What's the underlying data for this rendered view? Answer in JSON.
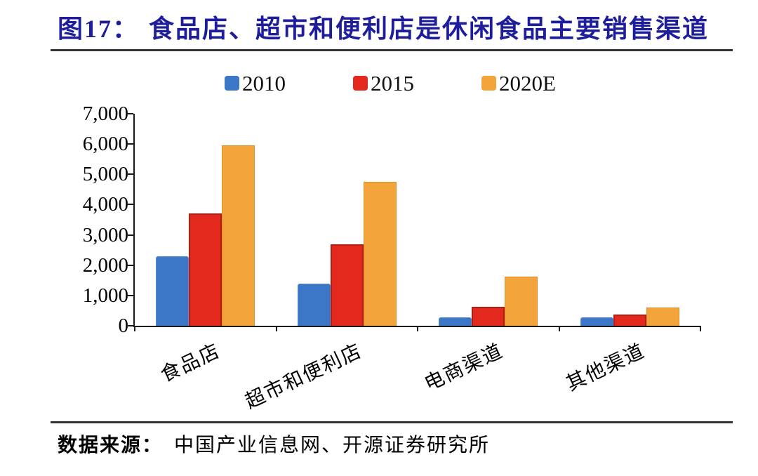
{
  "figure": {
    "title_prefix": "图17：",
    "title_text": "食品店、超市和便利店是休闲食品主要销售渠道"
  },
  "source": {
    "prefix": "数据来源：",
    "text": "中国产业信息网、开源证券研究所"
  },
  "colors": {
    "title": "#1E1E9C",
    "axis": "#1a1a1a",
    "series_2010": "#3C76C6",
    "series_2015": "#E3291D",
    "series_2020E": "#F2A33A"
  },
  "chart_data": {
    "type": "bar",
    "title": "图17：食品店、超市和便利店是休闲食品主要销售渠道",
    "categories": [
      "食品店",
      "超市和便利店",
      "电商渠道",
      "其他渠道"
    ],
    "series": [
      {
        "name": "2010",
        "color": "#3C76C6",
        "values": [
          2300,
          1400,
          280,
          280
        ]
      },
      {
        "name": "2015",
        "color": "#E3291D",
        "values": [
          3700,
          2700,
          620,
          380
        ]
      },
      {
        "name": "2020E",
        "color": "#F2A33A",
        "values": [
          5950,
          4750,
          1630,
          600
        ]
      }
    ],
    "xlabel": "",
    "ylabel": "",
    "ylim": [
      0,
      7000
    ],
    "ytick_step": 1000,
    "grid": false,
    "legend_position": "top"
  }
}
